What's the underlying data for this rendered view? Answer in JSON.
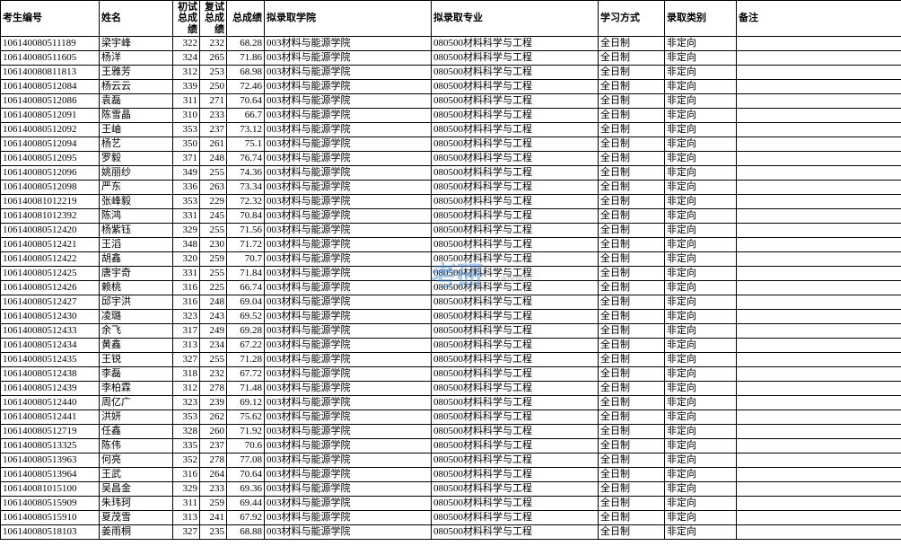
{
  "watermark": {
    "logo": "考研",
    "url": "okaoyan"
  },
  "table": {
    "columns": [
      {
        "label": "考生编号",
        "cls": "col-id"
      },
      {
        "label": "姓名",
        "cls": "col-name"
      },
      {
        "label": "初试总成绩",
        "cls": "col-s1"
      },
      {
        "label": "复试总成绩",
        "cls": "col-s2"
      },
      {
        "label": "总成绩",
        "cls": "col-s3"
      },
      {
        "label": "拟录取学院",
        "cls": "col-dept"
      },
      {
        "label": "拟录取专业",
        "cls": "col-major"
      },
      {
        "label": "学习方式",
        "cls": "col-mode"
      },
      {
        "label": "录取类别",
        "cls": "col-type"
      },
      {
        "label": "备注",
        "cls": "col-note"
      }
    ],
    "defaults": {
      "dept": "003材料与能源学院",
      "major": "080500材料科学与工程",
      "mode": "全日制",
      "type": "非定向",
      "note": ""
    },
    "rows": [
      {
        "id": "106140080511189",
        "name": "梁宇峰",
        "s1": 322,
        "s2": 232,
        "s3": "68.28"
      },
      {
        "id": "106140080511605",
        "name": "杨洋",
        "s1": 324,
        "s2": 265,
        "s3": "71.86"
      },
      {
        "id": "106140080811813",
        "name": "王雅芳",
        "s1": 312,
        "s2": 253,
        "s3": "68.98"
      },
      {
        "id": "106140080512084",
        "name": "杨云云",
        "s1": 339,
        "s2": 250,
        "s3": "72.46"
      },
      {
        "id": "106140080512086",
        "name": "袁磊",
        "s1": 311,
        "s2": 271,
        "s3": "70.64"
      },
      {
        "id": "106140080512091",
        "name": "陈雪晶",
        "s1": 310,
        "s2": 233,
        "s3": "66.7"
      },
      {
        "id": "106140080512092",
        "name": "王岫",
        "s1": 353,
        "s2": 237,
        "s3": "73.12"
      },
      {
        "id": "106140080512094",
        "name": "杨艺",
        "s1": 350,
        "s2": 261,
        "s3": "75.1"
      },
      {
        "id": "106140080512095",
        "name": "罗毅",
        "s1": 371,
        "s2": 248,
        "s3": "76.74"
      },
      {
        "id": "106140080512096",
        "name": "姚丽纱",
        "s1": 349,
        "s2": 255,
        "s3": "74.36"
      },
      {
        "id": "106140080512098",
        "name": "严东",
        "s1": 336,
        "s2": 263,
        "s3": "73.34"
      },
      {
        "id": "106140081012219",
        "name": "张峰毅",
        "s1": 353,
        "s2": 229,
        "s3": "72.32"
      },
      {
        "id": "106140081012392",
        "name": "陈鸿",
        "s1": 331,
        "s2": 245,
        "s3": "70.84"
      },
      {
        "id": "106140080512420",
        "name": "杨紫钰",
        "s1": 329,
        "s2": 255,
        "s3": "71.56"
      },
      {
        "id": "106140080512421",
        "name": "王滔",
        "s1": 348,
        "s2": 230,
        "s3": "71.72"
      },
      {
        "id": "106140080512422",
        "name": "胡鑫",
        "s1": 320,
        "s2": 259,
        "s3": "70.7",
        "major": "080500材料科学与工程"
      },
      {
        "id": "106140080512425",
        "name": "唐宇奇",
        "s1": 331,
        "s2": 255,
        "s3": "71.84",
        "major": "080500材料科学与工程"
      },
      {
        "id": "106140080512426",
        "name": "赖桃",
        "s1": 316,
        "s2": 225,
        "s3": "66.74"
      },
      {
        "id": "106140080512427",
        "name": "邱宇洪",
        "s1": 316,
        "s2": 248,
        "s3": "69.04"
      },
      {
        "id": "106140080512430",
        "name": "凌璐",
        "s1": 323,
        "s2": 243,
        "s3": "69.52"
      },
      {
        "id": "106140080512433",
        "name": "余飞",
        "s1": 317,
        "s2": 249,
        "s3": "69.28"
      },
      {
        "id": "106140080512434",
        "name": "黄鑫",
        "s1": 313,
        "s2": 234,
        "s3": "67.22"
      },
      {
        "id": "106140080512435",
        "name": "王锐",
        "s1": 327,
        "s2": 255,
        "s3": "71.28"
      },
      {
        "id": "106140080512438",
        "name": "李磊",
        "s1": 318,
        "s2": 232,
        "s3": "67.72"
      },
      {
        "id": "106140080512439",
        "name": "李柏霖",
        "s1": 312,
        "s2": 278,
        "s3": "71.48"
      },
      {
        "id": "106140080512440",
        "name": "周亿广",
        "s1": 323,
        "s2": 239,
        "s3": "69.12"
      },
      {
        "id": "106140080512441",
        "name": "洪妍",
        "s1": 353,
        "s2": 262,
        "s3": "75.62"
      },
      {
        "id": "106140080512719",
        "name": "任鑫",
        "s1": 328,
        "s2": 260,
        "s3": "71.92"
      },
      {
        "id": "106140080513325",
        "name": "陈伟",
        "s1": 335,
        "s2": 237,
        "s3": "70.6"
      },
      {
        "id": "106140080513963",
        "name": "何亮",
        "s1": 352,
        "s2": 278,
        "s3": "77.08"
      },
      {
        "id": "106140080513964",
        "name": "王武",
        "s1": 316,
        "s2": 264,
        "s3": "70.64"
      },
      {
        "id": "106140081015100",
        "name": "吴昌金",
        "s1": 329,
        "s2": 233,
        "s3": "69.36"
      },
      {
        "id": "106140080515909",
        "name": "朱玮珂",
        "s1": 311,
        "s2": 259,
        "s3": "69.44"
      },
      {
        "id": "106140080515910",
        "name": "夏茂雪",
        "s1": 313,
        "s2": 241,
        "s3": "67.92"
      },
      {
        "id": "106140080518103",
        "name": "姜雨桐",
        "s1": 327,
        "s2": 235,
        "s3": "68.88"
      }
    ]
  }
}
